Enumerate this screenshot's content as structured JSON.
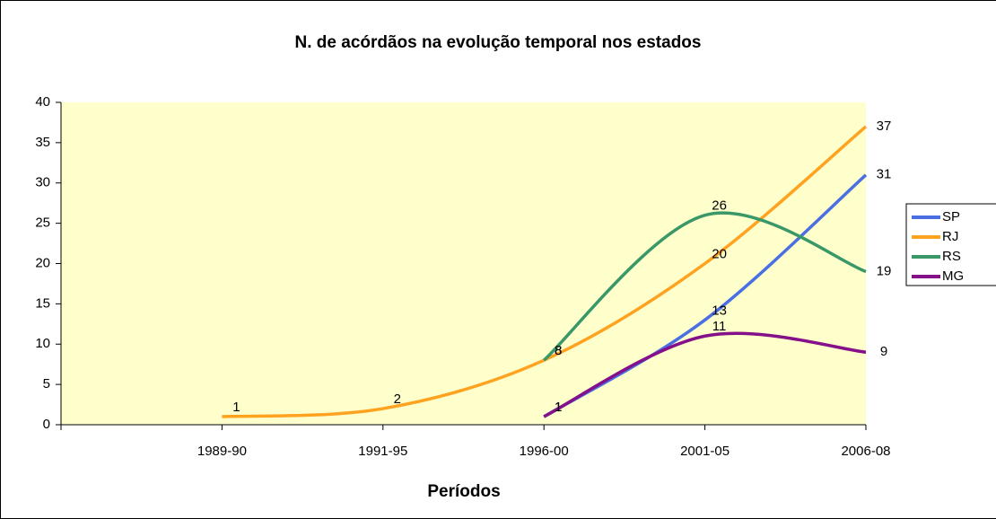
{
  "chart_data": {
    "type": "line",
    "title": "N. de acórdãos na evolução temporal nos estados",
    "x_label": "Períodos",
    "categories": [
      null,
      "1989-90",
      "1991-95",
      "1996-00",
      "2001-05",
      "2006-08"
    ],
    "series": [
      {
        "name": "SP",
        "color": "#4a6fe3",
        "values": [
          null,
          null,
          null,
          1,
          13,
          31
        ]
      },
      {
        "name": "RJ",
        "color": "#ffa21f",
        "values": [
          null,
          1,
          2,
          8,
          20,
          37
        ]
      },
      {
        "name": "RS",
        "color": "#3a9868",
        "values": [
          null,
          null,
          null,
          8,
          26,
          19
        ]
      },
      {
        "name": "MG",
        "color": "#84108a",
        "values": [
          null,
          null,
          null,
          1,
          11,
          9
        ]
      }
    ],
    "ylim": [
      0,
      40
    ],
    "yticks": [
      0,
      5,
      10,
      15,
      20,
      25,
      30,
      35,
      40
    ],
    "smooth": true,
    "legend": "right"
  }
}
